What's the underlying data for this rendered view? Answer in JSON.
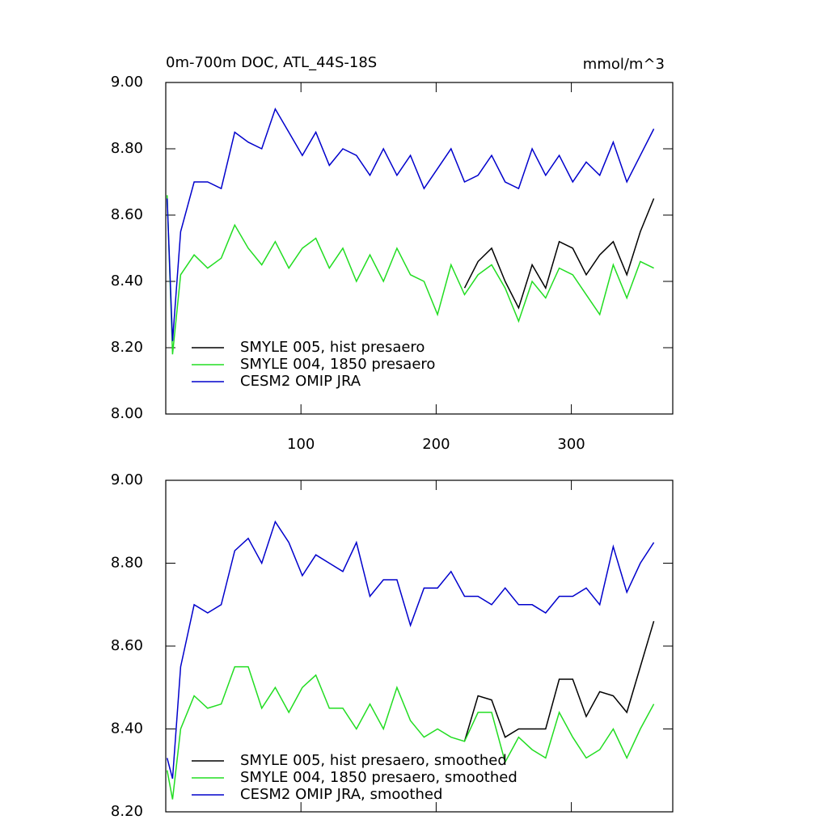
{
  "chart_data": [
    {
      "type": "line",
      "title": "0m-700m DOC, ATL_44S-18S",
      "units": "mmol/m^3",
      "x": [
        1,
        5,
        11,
        21,
        31,
        41,
        51,
        61,
        71,
        81,
        91,
        101,
        111,
        121,
        131,
        141,
        151,
        161,
        171,
        181,
        191,
        201,
        211,
        221,
        231,
        241,
        251,
        261,
        271,
        281,
        291,
        301,
        311,
        321,
        331,
        341,
        351,
        361
      ],
      "xlim": [
        0,
        375
      ],
      "xticks": [
        100,
        200,
        300
      ],
      "show_xtick_labels": true,
      "ylim": [
        8.0,
        9.0
      ],
      "yticks": [
        {
          "value": 8.0,
          "label": "8.00"
        },
        {
          "value": 8.2,
          "label": "8.20"
        },
        {
          "value": 8.4,
          "label": "8.40"
        },
        {
          "value": 8.6,
          "label": "8.60"
        },
        {
          "value": 8.8,
          "label": "8.80"
        },
        {
          "value": 9.0,
          "label": "9.00"
        }
      ],
      "legend": "lower left",
      "series": [
        {
          "name": "SMYLE 005, hist presaero",
          "color": "#000000",
          "values": [
            null,
            null,
            null,
            null,
            null,
            null,
            null,
            null,
            null,
            null,
            null,
            null,
            null,
            null,
            null,
            null,
            null,
            null,
            null,
            null,
            null,
            null,
            null,
            8.38,
            8.46,
            8.5,
            8.4,
            8.32,
            8.45,
            8.38,
            8.52,
            8.5,
            8.42,
            8.48,
            8.52,
            8.42,
            8.55,
            8.65
          ]
        },
        {
          "name": "SMYLE 004, 1850 presaero",
          "color": "#22dd22",
          "values": [
            8.66,
            8.18,
            8.42,
            8.48,
            8.44,
            8.47,
            8.57,
            8.5,
            8.45,
            8.52,
            8.44,
            8.5,
            8.53,
            8.44,
            8.5,
            8.4,
            8.48,
            8.4,
            8.5,
            8.42,
            8.4,
            8.3,
            8.45,
            8.36,
            8.42,
            8.45,
            8.38,
            8.28,
            8.4,
            8.35,
            8.44,
            8.42,
            8.36,
            8.3,
            8.45,
            8.35,
            8.46,
            8.44
          ]
        },
        {
          "name": "CESM2 OMIP JRA",
          "color": "#0000cc",
          "values": [
            8.65,
            8.22,
            8.55,
            8.7,
            8.7,
            8.68,
            8.85,
            8.82,
            8.8,
            8.92,
            8.85,
            8.78,
            8.85,
            8.75,
            8.8,
            8.78,
            8.72,
            8.8,
            8.72,
            8.78,
            8.68,
            8.74,
            8.8,
            8.7,
            8.72,
            8.78,
            8.7,
            8.68,
            8.8,
            8.72,
            8.78,
            8.7,
            8.76,
            8.72,
            8.82,
            8.7,
            8.78,
            8.86
          ]
        }
      ]
    },
    {
      "type": "line",
      "x": [
        1,
        5,
        11,
        21,
        31,
        41,
        51,
        61,
        71,
        81,
        91,
        101,
        111,
        121,
        131,
        141,
        151,
        161,
        171,
        181,
        191,
        201,
        211,
        221,
        231,
        241,
        251,
        261,
        271,
        281,
        291,
        301,
        311,
        321,
        331,
        341,
        351,
        361
      ],
      "xlim": [
        0,
        375
      ],
      "xticks": [
        100,
        200,
        300
      ],
      "show_xtick_labels": false,
      "ylim": [
        8.2,
        9.0
      ],
      "yticks": [
        {
          "value": 8.2,
          "label": "8.20"
        },
        {
          "value": 8.4,
          "label": "8.40"
        },
        {
          "value": 8.6,
          "label": "8.60"
        },
        {
          "value": 8.8,
          "label": "8.80"
        },
        {
          "value": 9.0,
          "label": "9.00"
        }
      ],
      "legend": "lower left",
      "series": [
        {
          "name": "SMYLE 005, hist presaero, smoothed",
          "color": "#000000",
          "values": [
            null,
            null,
            null,
            null,
            null,
            null,
            null,
            null,
            null,
            null,
            null,
            null,
            null,
            null,
            null,
            null,
            null,
            null,
            null,
            null,
            null,
            null,
            null,
            8.37,
            8.48,
            8.47,
            8.38,
            8.4,
            8.4,
            8.4,
            8.52,
            8.52,
            8.43,
            8.49,
            8.48,
            8.44,
            8.55,
            8.66
          ]
        },
        {
          "name": "SMYLE 004, 1850 presaero, smoothed",
          "color": "#22dd22",
          "values": [
            8.3,
            8.23,
            8.4,
            8.48,
            8.45,
            8.46,
            8.55,
            8.55,
            8.45,
            8.5,
            8.44,
            8.5,
            8.53,
            8.45,
            8.45,
            8.4,
            8.46,
            8.4,
            8.5,
            8.42,
            8.38,
            8.4,
            8.38,
            8.37,
            8.44,
            8.44,
            8.32,
            8.38,
            8.35,
            8.33,
            8.44,
            8.38,
            8.33,
            8.35,
            8.4,
            8.33,
            8.4,
            8.46
          ]
        },
        {
          "name": "CESM2 OMIP JRA, smoothed",
          "color": "#0000cc",
          "values": [
            8.33,
            8.28,
            8.55,
            8.7,
            8.68,
            8.7,
            8.83,
            8.86,
            8.8,
            8.9,
            8.85,
            8.77,
            8.82,
            8.8,
            8.78,
            8.85,
            8.72,
            8.76,
            8.76,
            8.65,
            8.74,
            8.74,
            8.78,
            8.72,
            8.72,
            8.7,
            8.74,
            8.7,
            8.7,
            8.68,
            8.72,
            8.72,
            8.74,
            8.7,
            8.84,
            8.73,
            8.8,
            8.85
          ]
        }
      ]
    }
  ]
}
